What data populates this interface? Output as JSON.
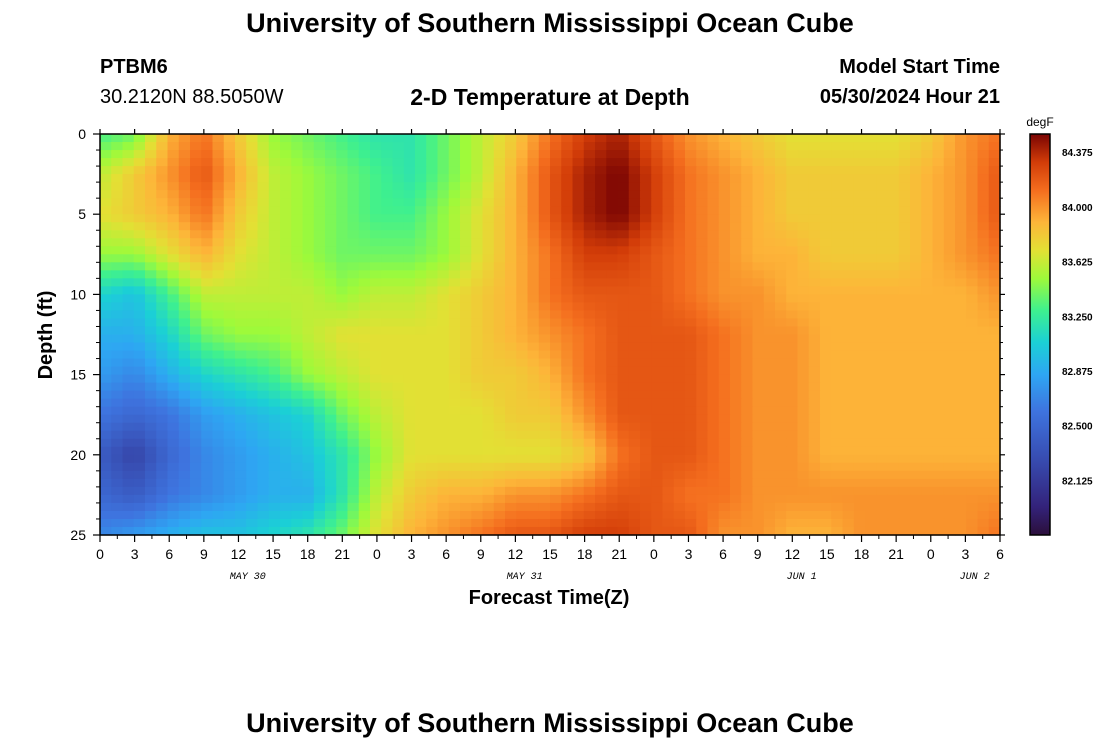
{
  "header": {
    "title": "University of Southern Mississippi Ocean Cube",
    "station_id": "PTBM6",
    "coords": "30.2120N  88.5050W",
    "model_start_label": "Model Start Time",
    "model_start_value": "05/30/2024 Hour 21",
    "footer_title": "University of Southern Mississippi Ocean Cube"
  },
  "chart_data": {
    "type": "heatmap",
    "title": "2-D Temperature at Depth",
    "xlabel": "Forecast Time(Z)",
    "ylabel": "Depth (ft)",
    "x_ticks": [
      "0",
      "3",
      "6",
      "9",
      "12",
      "15",
      "18",
      "21",
      "0",
      "3",
      "6",
      "9",
      "12",
      "15",
      "18",
      "21",
      "0",
      "3",
      "6",
      "9",
      "12",
      "15",
      "18",
      "21",
      "0",
      "3",
      "6"
    ],
    "date_labels": [
      {
        "label": "MAY 30",
        "at_tick": 4
      },
      {
        "label": "MAY 31",
        "at_tick": 12
      },
      {
        "label": "JUN 1",
        "at_tick": 20
      },
      {
        "label": "JUN 2",
        "at_tick": 25
      }
    ],
    "x_range_hours": [
      0,
      78
    ],
    "y_ticks": [
      "0",
      "5",
      "10",
      "15",
      "20",
      "25"
    ],
    "ylim": [
      0,
      25
    ],
    "y_inverted": true,
    "colorbar": {
      "unit": "degF",
      "labels": [
        "84.375",
        "84.000",
        "83.625",
        "83.250",
        "82.875",
        "82.500",
        "82.125"
      ],
      "vmin": 81.75,
      "vmax": 84.5
    },
    "anchors": {
      "times_hours": [
        0,
        3,
        6,
        9,
        12,
        15,
        18,
        21,
        24,
        27,
        30,
        33,
        36,
        39,
        42,
        45,
        48,
        51,
        54,
        57,
        60,
        63,
        66,
        69,
        72,
        75,
        78
      ],
      "depths_ft": [
        0,
        2.5,
        5,
        7.5,
        10,
        12.5,
        15,
        17.5,
        20,
        22.5,
        25
      ],
      "temperature_degF": [
        [
          83.3,
          83.4,
          83.9,
          84.1,
          83.8,
          83.5,
          83.4,
          83.3,
          83.2,
          83.2,
          83.4,
          83.6,
          83.8,
          84.1,
          84.3,
          84.4,
          84.2,
          84.0,
          83.9,
          83.8,
          83.7,
          83.7,
          83.7,
          83.7,
          83.8,
          84.0,
          84.1
        ],
        [
          83.6,
          83.8,
          84.0,
          84.2,
          83.9,
          83.6,
          83.5,
          83.4,
          83.3,
          83.2,
          83.4,
          83.6,
          83.9,
          84.2,
          84.4,
          84.5,
          84.3,
          84.1,
          84.0,
          83.9,
          83.8,
          83.8,
          83.8,
          83.8,
          83.9,
          84.0,
          84.2
        ],
        [
          83.7,
          83.8,
          83.9,
          84.1,
          83.8,
          83.6,
          83.5,
          83.4,
          83.3,
          83.3,
          83.5,
          83.7,
          83.9,
          84.2,
          84.4,
          84.5,
          84.3,
          84.1,
          84.0,
          83.9,
          83.8,
          83.8,
          83.8,
          83.8,
          83.9,
          84.0,
          84.2
        ],
        [
          83.5,
          83.5,
          83.7,
          83.9,
          83.7,
          83.6,
          83.5,
          83.4,
          83.4,
          83.4,
          83.5,
          83.7,
          83.9,
          84.1,
          84.3,
          84.3,
          84.2,
          84.1,
          84.0,
          83.9,
          83.9,
          83.8,
          83.8,
          83.8,
          83.9,
          84.0,
          84.1
        ],
        [
          83.1,
          83.0,
          83.3,
          83.6,
          83.6,
          83.6,
          83.6,
          83.5,
          83.6,
          83.6,
          83.7,
          83.8,
          83.9,
          84.1,
          84.2,
          84.2,
          84.2,
          84.1,
          84.0,
          84.0,
          83.9,
          83.9,
          83.9,
          83.9,
          83.9,
          83.9,
          84.0
        ],
        [
          82.9,
          82.9,
          83.1,
          83.4,
          83.5,
          83.5,
          83.6,
          83.7,
          83.7,
          83.7,
          83.7,
          83.8,
          83.9,
          84.0,
          84.1,
          84.2,
          84.2,
          84.2,
          84.1,
          84.0,
          84.0,
          83.9,
          83.9,
          83.9,
          83.9,
          83.9,
          83.9
        ],
        [
          82.8,
          82.7,
          82.9,
          83.1,
          83.2,
          83.3,
          83.5,
          83.6,
          83.7,
          83.7,
          83.7,
          83.8,
          83.8,
          83.9,
          84.1,
          84.2,
          84.2,
          84.2,
          84.1,
          84.0,
          84.0,
          83.9,
          83.9,
          83.9,
          83.9,
          83.9,
          83.9
        ],
        [
          82.6,
          82.5,
          82.6,
          82.8,
          82.9,
          83.0,
          83.1,
          83.4,
          83.6,
          83.7,
          83.7,
          83.7,
          83.8,
          83.8,
          84.0,
          84.2,
          84.2,
          84.2,
          84.1,
          84.0,
          84.0,
          83.9,
          83.9,
          83.9,
          83.9,
          83.9,
          83.9
        ],
        [
          82.4,
          82.2,
          82.5,
          82.7,
          82.8,
          82.9,
          83.0,
          83.2,
          83.5,
          83.7,
          83.7,
          83.7,
          83.7,
          83.7,
          83.8,
          84.1,
          84.2,
          84.2,
          84.1,
          84.0,
          84.0,
          83.9,
          83.9,
          83.9,
          83.9,
          83.9,
          83.9
        ],
        [
          82.5,
          82.4,
          82.6,
          82.7,
          82.8,
          82.9,
          82.9,
          83.2,
          83.6,
          83.8,
          83.9,
          83.9,
          84.0,
          84.0,
          84.1,
          84.2,
          84.2,
          84.1,
          84.1,
          84.0,
          84.0,
          84.0,
          84.0,
          84.0,
          84.0,
          84.0,
          84.0
        ],
        [
          82.7,
          82.8,
          82.9,
          83.0,
          83.0,
          83.1,
          83.2,
          83.4,
          83.7,
          83.9,
          84.0,
          84.1,
          84.2,
          84.2,
          84.3,
          84.3,
          84.2,
          84.2,
          84.0,
          84.0,
          83.9,
          83.9,
          84.0,
          84.0,
          84.0,
          84.0,
          84.1
        ]
      ]
    }
  }
}
